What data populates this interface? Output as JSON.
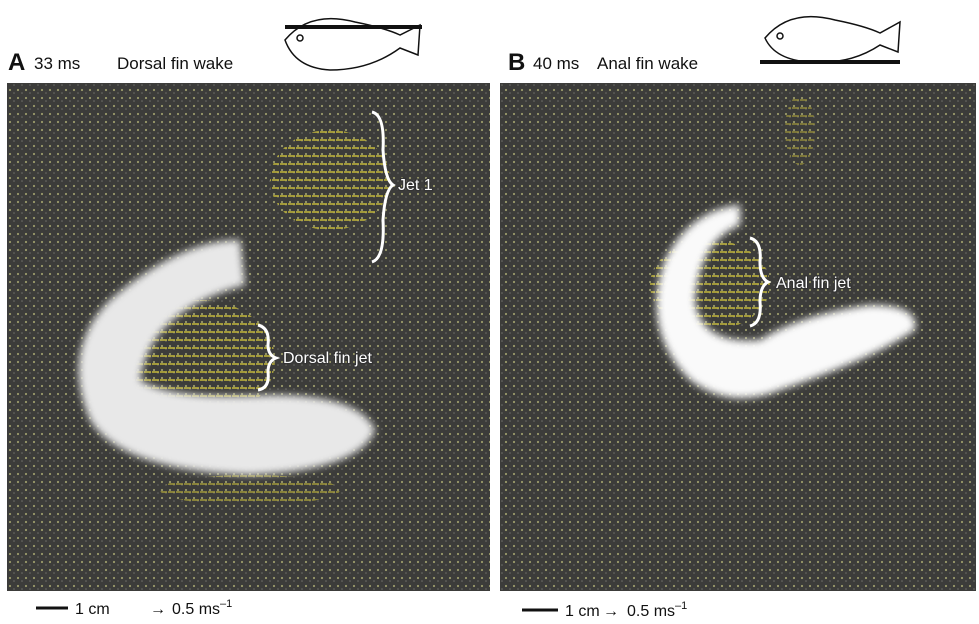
{
  "panels": [
    {
      "letter": "A",
      "time": "33 ms",
      "title": "Dorsal fin wake",
      "annotations": [
        "Jet 1",
        "Dorsal fin jet"
      ],
      "scale_length": "1 cm",
      "scale_velocity": "0.5 ms",
      "velocity_exponent": "–1"
    },
    {
      "letter": "B",
      "time": "40 ms",
      "title": "Anal fin wake",
      "annotations": [
        "Anal fin jet"
      ],
      "scale_length": "1 cm",
      "scale_velocity": "0.5 ms",
      "velocity_exponent": "–1"
    }
  ]
}
